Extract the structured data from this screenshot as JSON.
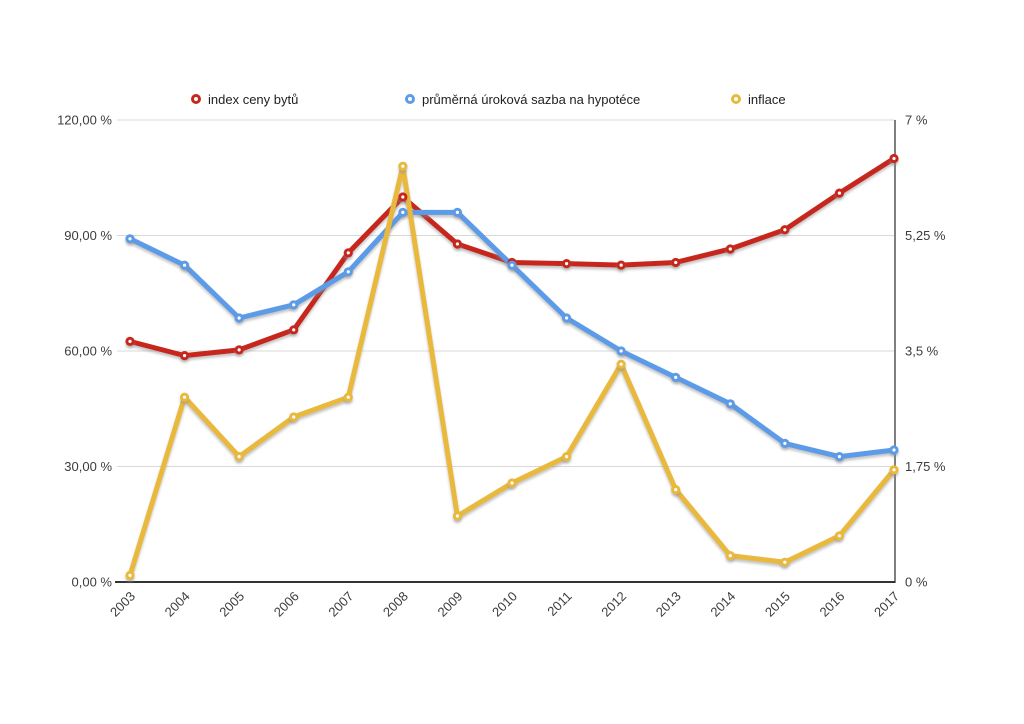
{
  "chart": {
    "legend": [
      {
        "label": "index ceny bytů",
        "color": "#C7281C"
      },
      {
        "label": "průměrná úroková sazba na hypotéce",
        "color": "#5B9BE8"
      },
      {
        "label": "inflace",
        "color": "#E9B93D"
      }
    ]
  },
  "chart_data": {
    "type": "line",
    "title": "",
    "categories": [
      "2003",
      "2004",
      "2005",
      "2006",
      "2007",
      "2008",
      "2009",
      "2010",
      "2011",
      "2012",
      "2013",
      "2014",
      "2015",
      "2016",
      "2017"
    ],
    "series": [
      {
        "name": "index ceny bytů",
        "axis": "left",
        "color": "#C7281C",
        "values": [
          62.5,
          58.8,
          60.3,
          65.5,
          85.5,
          100.0,
          87.8,
          83.0,
          82.7,
          82.3,
          83.0,
          86.5,
          91.5,
          101.0,
          110.0
        ]
      },
      {
        "name": "průměrná úroková sazba na hypotéce",
        "axis": "right",
        "color": "#5B9BE8",
        "values": [
          5.2,
          4.8,
          4.0,
          4.2,
          4.7,
          5.6,
          5.6,
          4.8,
          4.0,
          3.5,
          3.1,
          2.7,
          2.1,
          1.9,
          2.0
        ]
      },
      {
        "name": "inflace",
        "axis": "right",
        "color": "#E9B93D",
        "values": [
          0.1,
          2.8,
          1.9,
          2.5,
          2.8,
          6.3,
          1.0,
          1.5,
          1.9,
          3.3,
          1.4,
          0.4,
          0.3,
          0.7,
          1.7
        ]
      }
    ],
    "left_axis": {
      "min": 0,
      "max": 120,
      "tick_values": [
        0,
        30,
        60,
        90,
        120
      ],
      "tick_labels": [
        "0,00 %",
        "30,00 %",
        "60,00 %",
        "90,00 %",
        "120,00 %"
      ]
    },
    "right_axis": {
      "min": 0,
      "max": 7,
      "tick_values": [
        0,
        1.75,
        3.5,
        5.25,
        7
      ],
      "tick_labels": [
        "0 %",
        "1,75 %",
        "3,5 %",
        "5,25 %",
        "7 %"
      ]
    },
    "grid": true,
    "legend_position": "top"
  },
  "colors": {
    "grid": "#D9D9D9",
    "axis_line": "#333333",
    "right_border": "#555555",
    "tick_text": "#3C3C3C",
    "legend_text": "#1F1F1F",
    "background": "#FFFFFF"
  }
}
